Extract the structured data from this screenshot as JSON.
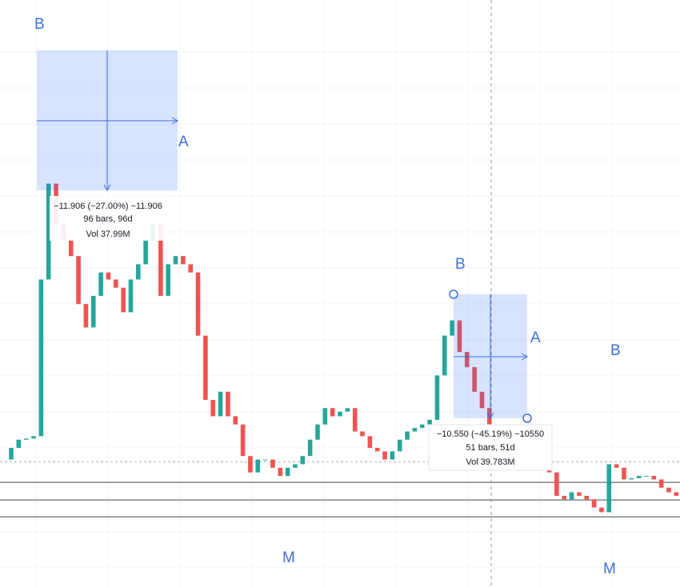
{
  "chart_data": {
    "type": "candlestick",
    "values": [
      9.1,
      10.1,
      10.8,
      10.9,
      11.1,
      24.5,
      32.7,
      29.2,
      27.9,
      26.5,
      22.4,
      20.4,
      23.1,
      25.1,
      24.5,
      23.8,
      21.7,
      24.5,
      25.8,
      27.9,
      29.2,
      23.1,
      25.8,
      26.5,
      25.8,
      25.1,
      19.7,
      14.2,
      12.8,
      14.9,
      12.8,
      12.1,
      9.4,
      8.0,
      9.1,
      9.1,
      8.4,
      7.7,
      8.4,
      8.7,
      9.4,
      10.8,
      12.1,
      13.5,
      12.8,
      13.2,
      13.5,
      11.5,
      11.1,
      10.1,
      9.8,
      9.1,
      9.8,
      10.8,
      11.5,
      11.8,
      12.1,
      12.5,
      16.3,
      19.7,
      21.0,
      18.3,
      17.0,
      14.9,
      13.5,
      12.1,
      11.1,
      10.4,
      10.1,
      9.8,
      9.8,
      9.4,
      8.7,
      8.0,
      6.0,
      5.7,
      6.3,
      6.0,
      5.7,
      5.0,
      4.6,
      8.7,
      8.4,
      7.4,
      7.5,
      7.7,
      7.7,
      7.4,
      6.7,
      6.3,
      6.0
    ],
    "up_color": "#26a69a",
    "down_color": "#ef5350",
    "ylim": [
      -1.8,
      48.4
    ],
    "levels": [
      7.15,
      5.65,
      4.2
    ],
    "dashed_level": 8.9,
    "labels": {
      "b1": "B",
      "a1": "A",
      "b2": "B",
      "a2": "A",
      "b3": "B",
      "m1": "M",
      "m2": "M"
    },
    "measures": [
      {
        "change": "−11.906 (−27.00%) −11.906",
        "bars": "96 bars, 96d",
        "vol": "Vol 37.99M"
      },
      {
        "change": "−10.550 (−45.19%) −10550",
        "bars": "51 bars, 51d",
        "vol": "Vol 39.783M"
      }
    ]
  }
}
